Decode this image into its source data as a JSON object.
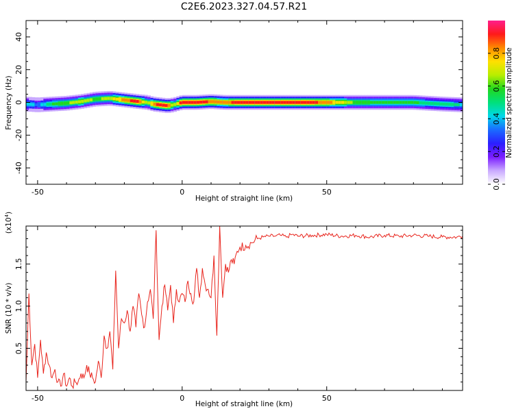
{
  "title": "C2E6.2023.327.04.57.R21",
  "colors": {
    "snr_line": "#e8231b",
    "colormap": [
      "#ffffff",
      "#c9a9ff",
      "#7a1cff",
      "#2b1fff",
      "#1a6cff",
      "#00d8e8",
      "#00e07a",
      "#22d81e",
      "#b8ee00",
      "#ffe000",
      "#ff8a00",
      "#ff1a1a",
      "#ff1e8c"
    ]
  },
  "chart_data": [
    {
      "type": "heatmap",
      "xlabel": "Height of straight line (km)",
      "ylabel": "Frequency (Hz)",
      "xlim": [
        -54,
        97
      ],
      "ylim": [
        -50,
        50
      ],
      "xticks": [
        "-50",
        "0",
        "50"
      ],
      "yticks": [
        "40",
        "20",
        "0",
        "-20",
        "-40"
      ],
      "colorbar": {
        "label": "Normalized spectral amplitude",
        "range": [
          0,
          1
        ],
        "ticks": [
          "0.0",
          "0.2",
          "0.4",
          "0.6",
          "0.8"
        ]
      },
      "ridge": {
        "x": [
          -54,
          -50,
          -45,
          -40,
          -35,
          -30,
          -25,
          -20,
          -15,
          -12,
          -10,
          -5,
          -3,
          0,
          5,
          10,
          15,
          20,
          30,
          40,
          50,
          60,
          70,
          80,
          90,
          97
        ],
        "center_hz": [
          -1,
          -1.5,
          -1,
          -0.5,
          0.5,
          2,
          2.5,
          1.5,
          0.5,
          0,
          -1,
          -2,
          -1.5,
          0,
          0,
          0.5,
          0,
          0,
          0,
          0,
          0,
          0,
          0,
          0,
          -1,
          -1.5
        ],
        "amplitude": [
          0.45,
          0.35,
          0.55,
          0.6,
          0.7,
          0.6,
          0.65,
          0.85,
          0.9,
          0.6,
          0.85,
          0.95,
          0.6,
          0.95,
          0.95,
          0.85,
          0.8,
          0.95,
          0.95,
          0.93,
          0.85,
          0.6,
          0.55,
          0.55,
          0.5,
          0.45
        ]
      }
    },
    {
      "type": "line",
      "xlabel": "Height of straight line (km)",
      "ylabel": "SNR (10 * v/v)",
      "y_multiplier": "(x10^4)",
      "xlim": [
        -54,
        97
      ],
      "ylim": [
        0,
        1.95
      ],
      "xticks": [
        "-50",
        "0",
        "50"
      ],
      "yticks": [
        "0.5",
        "1.0",
        "1.5"
      ],
      "series": [
        {
          "x": [
            -54,
            -53,
            -52,
            -51,
            -50,
            -49,
            -48,
            -47,
            -46,
            -45,
            -44,
            -43,
            -42,
            -41,
            -40,
            -39,
            -38,
            -37,
            -36,
            -35,
            -34,
            -33,
            -32,
            -31,
            -30,
            -29,
            -28,
            -27,
            -26,
            -25,
            -24,
            -23,
            -22,
            -21,
            -20,
            -19,
            -18,
            -17,
            -16,
            -15,
            -14,
            -13,
            -12,
            -11,
            -10,
            -9,
            -8,
            -7,
            -6,
            -5,
            -4,
            -3,
            -2,
            -1,
            0,
            1,
            2,
            3,
            4,
            5,
            6,
            7,
            8,
            9,
            10,
            11,
            12,
            13,
            14,
            15,
            16,
            17,
            18,
            19,
            20,
            22,
            24,
            26,
            28,
            30,
            32,
            34,
            36,
            38,
            40,
            45,
            50,
            55,
            60,
            65,
            70,
            75,
            80,
            85,
            90,
            95,
            97
          ],
          "y": [
            0.1,
            1.15,
            0.3,
            0.55,
            0.15,
            0.6,
            0.2,
            0.45,
            0.3,
            0.15,
            0.25,
            0.1,
            0.05,
            0.2,
            0.05,
            0.15,
            0.05,
            0.1,
            0.1,
            0.2,
            0.15,
            0.3,
            0.2,
            0.15,
            0.1,
            0.35,
            0.15,
            0.65,
            0.5,
            0.7,
            0.25,
            1.42,
            0.5,
            0.85,
            0.8,
            0.95,
            0.7,
            1.0,
            0.75,
            1.15,
            0.9,
            0.75,
            1.05,
            1.2,
            0.85,
            1.9,
            0.6,
            1.0,
            1.25,
            0.95,
            1.25,
            0.8,
            1.2,
            1.05,
            1.15,
            1.05,
            1.3,
            1.15,
            1.05,
            1.45,
            1.1,
            1.45,
            1.25,
            1.2,
            1.1,
            1.6,
            0.65,
            1.95,
            1.1,
            1.5,
            1.4,
            1.55,
            1.5,
            1.65,
            1.7,
            1.72,
            1.75,
            1.8,
            1.82,
            1.83,
            1.83,
            1.84,
            1.82,
            1.85,
            1.83,
            1.84,
            1.85,
            1.83,
            1.84,
            1.82,
            1.84,
            1.83,
            1.84,
            1.83,
            1.82,
            1.82,
            1.83
          ]
        }
      ]
    }
  ]
}
